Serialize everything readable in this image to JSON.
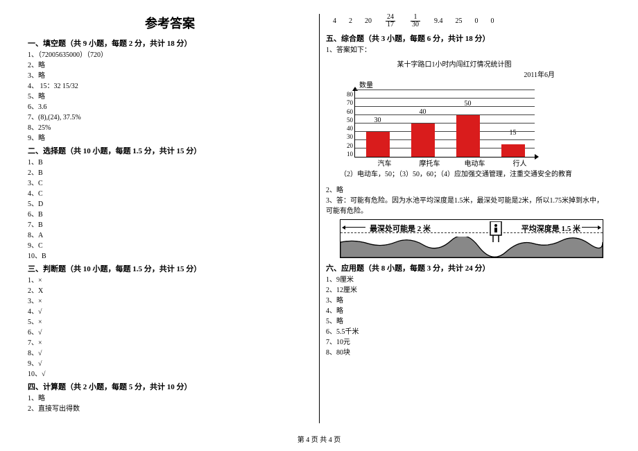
{
  "title": "参考答案",
  "left": {
    "sec1": {
      "head": "一、填空题（共 9 小题，每题 2 分，共计 18 分）",
      "items": [
        "1、（72005635000）（720）",
        "2、略",
        "3、略",
        "4、 15：32    15/32",
        "5、略",
        "6、3.6",
        "7、(8),(24), 37.5%",
        "8、25%",
        "9、略"
      ]
    },
    "sec2": {
      "head": "二、选择题（共 10 小题，每题 1.5 分，共计 15 分）",
      "items": [
        "1、B",
        "2、B",
        "3、C",
        "4、C",
        "5、D",
        "6、B",
        "7、B",
        "8、A",
        "9、C",
        "10、B"
      ]
    },
    "sec3": {
      "head": "三、判断题（共 10 小题，每题 1.5 分，共计 15 分）",
      "items": [
        "1、×",
        "2、X",
        "3、×",
        "4、√",
        "5、×",
        "6、√",
        "7、×",
        "8、√",
        "9、√",
        "10、√"
      ]
    },
    "sec4": {
      "head": "四、计算题（共 2 小题，每题 5 分，共计 10 分）",
      "items": [
        "1、略",
        "2、直接写出得数"
      ]
    }
  },
  "right": {
    "numrow": [
      "4",
      "2",
      "20",
      "24/17",
      "1/30",
      "9.4",
      "25",
      "0",
      "0"
    ],
    "sec5": {
      "head": "五、综合题（共 3 小题，每题 6 分，共计 18 分）",
      "q1": "1、答案如下：",
      "chart": {
        "title": "某十字路口1小时内闯红灯情况统计图",
        "date": "2011年6月",
        "ylabel": "数量",
        "ymax": 80,
        "ystep": 10,
        "yticks": [
          "80",
          "70",
          "60",
          "50",
          "40",
          "30",
          "20",
          "10"
        ],
        "grid_color": "#444444",
        "bar_color": "#d91c1c",
        "categories": [
          "汽车",
          "摩托车",
          "电动车",
          "行人"
        ],
        "values": [
          30,
          40,
          50,
          15
        ]
      },
      "q1_ans": "（2）电动车，50；（3）50，60；（4）应加强交通管理，注重交通安全的教育",
      "q2": "2、略",
      "q3a": "3、答：可能有危险。因为水池平均深度是1.5米，最深处可能是2米，所以1.75米掉到水中，",
      "q3b": "可能有危险。",
      "depth": {
        "left": "最深处可能是 2 米",
        "right": "平均深度是 1.5 米"
      }
    },
    "sec6": {
      "head": "六、应用题（共 8 小题，每题 3 分，共计 24 分）",
      "items": [
        "1、9厘米",
        "2、12厘米",
        "3、略",
        "4、略",
        "5、略",
        "6、5.5千米",
        "7、10元",
        "8、80块"
      ]
    }
  },
  "footer": "第 4 页  共 4 页"
}
